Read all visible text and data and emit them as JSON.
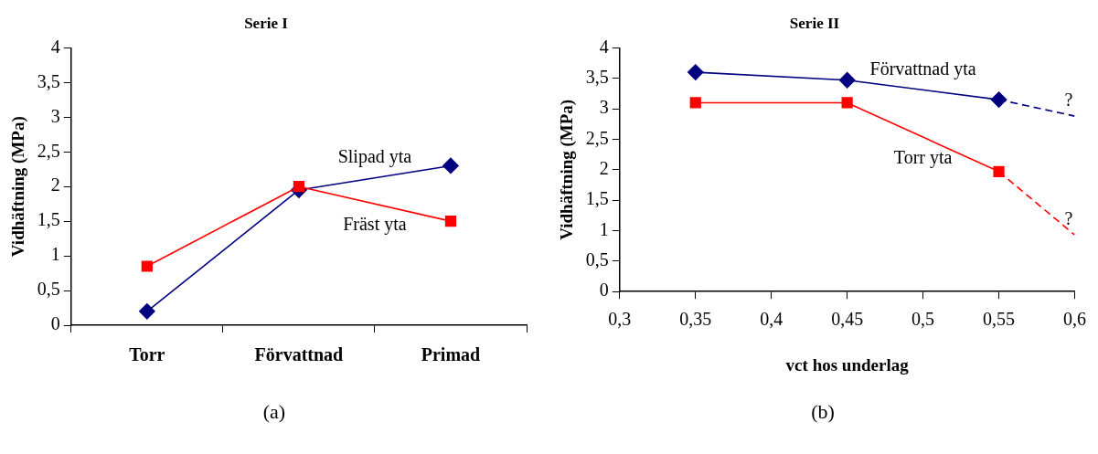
{
  "chart_data": [
    {
      "type": "line",
      "title": "Serie I",
      "ylabel": "Vidhäftning (MPa)",
      "categories": [
        "Torr",
        "Förvattnad",
        "Primad"
      ],
      "series": [
        {
          "name": "Slipad yta",
          "color": "#000080",
          "marker": "diamond",
          "values": [
            0.2,
            1.95,
            2.3
          ]
        },
        {
          "name": "Fräst yta",
          "color": "#ff0000",
          "marker": "square",
          "values": [
            0.85,
            2.0,
            1.5
          ]
        }
      ],
      "ylim": [
        0,
        4
      ],
      "yticks": [
        0,
        {
          "value": 0.5,
          "label": "0,5"
        },
        1,
        {
          "value": 1.5,
          "label": "1,5"
        },
        2,
        {
          "value": 2.5,
          "label": "2,5"
        },
        3,
        {
          "value": 3.5,
          "label": "3,5"
        },
        4
      ],
      "grid": false,
      "legend": false,
      "line_style": "solid",
      "annotations": [
        "(a)"
      ]
    },
    {
      "type": "line",
      "title": "Serie II",
      "xlabel": "vct hos underlag",
      "ylabel": "Vidhäftning (MPa)",
      "series": [
        {
          "name": "Förvattnad yta",
          "color": "#000080",
          "marker": "diamond",
          "x": [
            0.35,
            0.45,
            0.55
          ],
          "values": [
            3.6,
            3.47,
            3.15
          ]
        },
        {
          "name": "Torr yta",
          "color": "#ff0000",
          "marker": "square",
          "x": [
            0.35,
            0.45,
            0.55
          ],
          "values": [
            3.1,
            3.1,
            1.97
          ]
        },
        {
          "color": "#000080",
          "marker": "none",
          "line_style": "dashed",
          "x": [
            0.55,
            0.6
          ],
          "values": [
            3.15,
            2.88
          ]
        },
        {
          "color": "#ff0000",
          "marker": "none",
          "line_style": "dashed",
          "x": [
            0.55,
            0.6
          ],
          "values": [
            1.97,
            0.93
          ]
        }
      ],
      "xlim": [
        0.3,
        0.6
      ],
      "xticks": [
        {
          "value": 0.3,
          "label": "0,3"
        },
        {
          "value": 0.35,
          "label": "0,35"
        },
        {
          "value": 0.4,
          "label": "0,4"
        },
        {
          "value": 0.45,
          "label": "0,45"
        },
        {
          "value": 0.5,
          "label": "0,5"
        },
        {
          "value": 0.55,
          "label": "0,55"
        },
        {
          "value": 0.6,
          "label": "0,6"
        }
      ],
      "ylim": [
        0,
        4
      ],
      "yticks": [
        0,
        {
          "value": 0.5,
          "label": "0,5"
        },
        1,
        {
          "value": 1.5,
          "label": "1,5"
        },
        2,
        {
          "value": 2.5,
          "label": "2,5"
        },
        3,
        {
          "value": 3.5,
          "label": "3,5"
        },
        4
      ],
      "grid": false,
      "legend": false,
      "line_style": "solid",
      "annotations": [
        {
          "text": "?",
          "x": 0.6,
          "y": 2.88
        },
        {
          "text": "?",
          "x": 0.6,
          "y": 0.93
        },
        "(b)"
      ]
    }
  ]
}
